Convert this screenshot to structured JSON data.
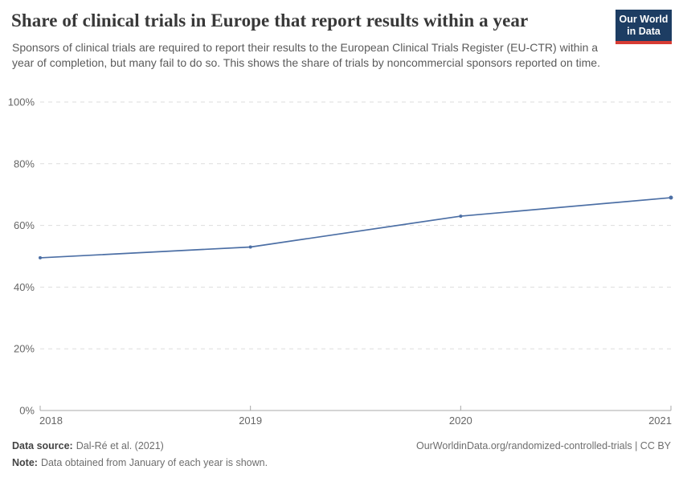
{
  "header": {
    "title": "Share of clinical trials in Europe that report results within a year",
    "subtitle": "Sponsors of clinical trials are required to report their results to the European Clinical Trials Register (EU-CTR) within a year of completion, but many fail to do so. This shows the share of trials by noncommercial sponsors reported on time.",
    "logo": {
      "line1": "Our World",
      "line2": "in Data",
      "bg_color": "#1d3d63",
      "accent_color": "#d73c34"
    }
  },
  "chart_data": {
    "type": "line",
    "title": "Share of clinical trials in Europe that report results within a year",
    "x": [
      2018,
      2019,
      2020,
      2021
    ],
    "series": [
      {
        "name": "Share of trials by noncommercial sponsors reported on time",
        "values": [
          49.5,
          53,
          63,
          69
        ]
      }
    ],
    "xlabel": "",
    "ylabel": "",
    "ylim": [
      0,
      100
    ],
    "yticks": [
      0,
      20,
      40,
      60,
      80,
      100
    ],
    "ytick_suffix": "%",
    "grid": "horizontal-dashed",
    "legend": "none",
    "line_color": "#4c6fa5",
    "marker": "dot",
    "axis_color": "#a8a8a8",
    "gridline_color": "#dddddd",
    "tick_label_color": "#666666"
  },
  "footer": {
    "source_label": "Data source:",
    "source_value": "Dal-Ré et al. (2021)",
    "note_label": "Note:",
    "note_value": "Data obtained from January of each year is shown.",
    "right_text": "OurWorldinData.org/randomized-controlled-trials | CC BY"
  }
}
